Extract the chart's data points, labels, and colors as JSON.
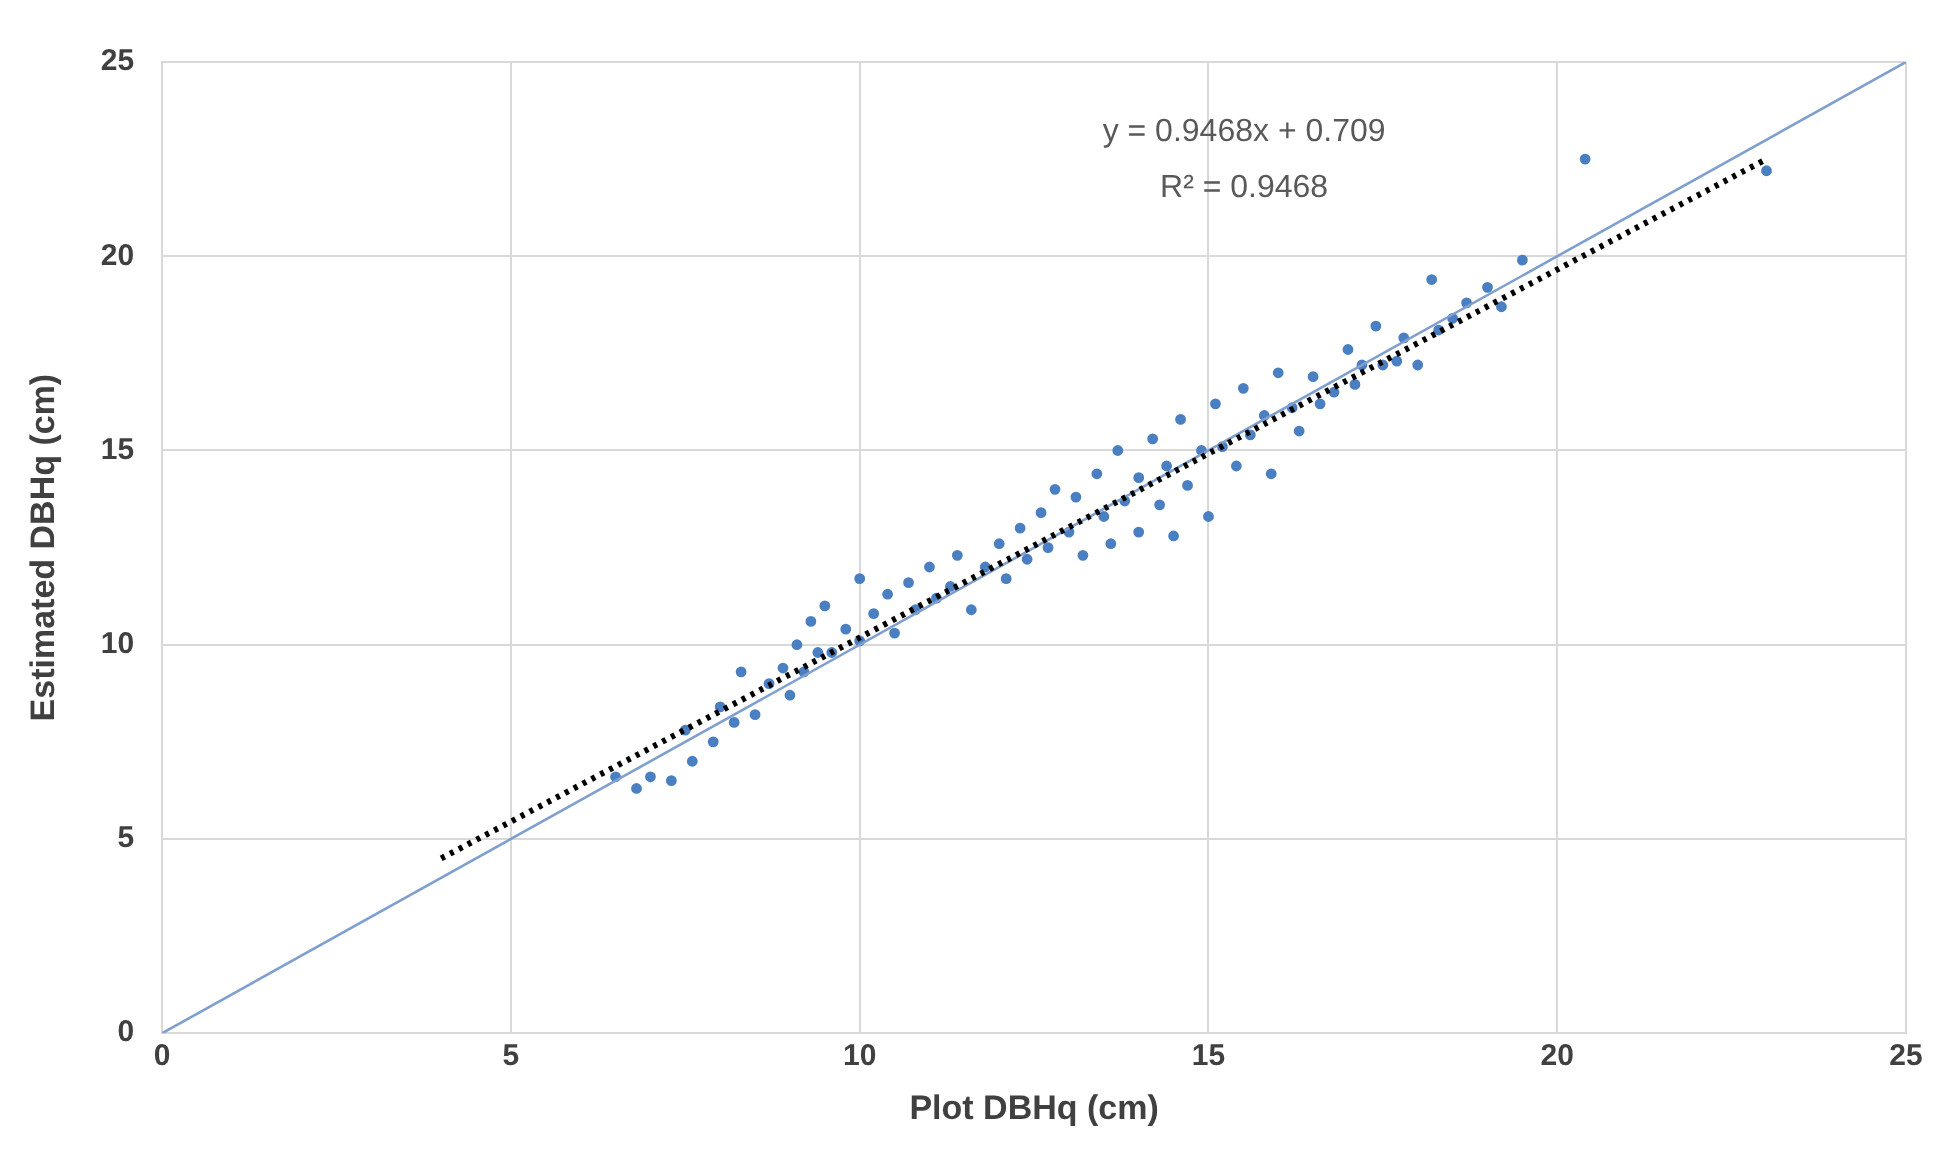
{
  "chart_data": {
    "type": "scatter",
    "xlabel": "Plot DBHq (cm)",
    "ylabel": "Estimated DBHq (cm)",
    "annotations": [
      "y = 0.9468x + 0.709",
      "R² = 0.9468"
    ],
    "xlim": [
      0,
      25
    ],
    "xticks": [
      0,
      5,
      10,
      15,
      20,
      25
    ],
    "ylim": [
      0,
      25
    ],
    "yticks": [
      0,
      5,
      10,
      15,
      20,
      25
    ],
    "grid": true,
    "legend": false,
    "marker": "circle",
    "series": [
      {
        "type": "scatter",
        "color": "#4a7fc1",
        "x": [
          6.5,
          6.8,
          7.0,
          7.3,
          7.5,
          7.6,
          7.9,
          8.0,
          8.2,
          8.3,
          8.5,
          8.7,
          8.9,
          9.0,
          9.1,
          9.2,
          9.3,
          9.4,
          9.5,
          9.6,
          9.8,
          10.0,
          10.0,
          10.2,
          10.4,
          10.5,
          10.7,
          10.8,
          11.0,
          11.1,
          11.3,
          11.4,
          11.6,
          11.8,
          12.0,
          12.1,
          12.3,
          12.4,
          12.6,
          12.7,
          12.8,
          13.0,
          13.1,
          13.2,
          13.4,
          13.5,
          13.6,
          13.7,
          13.8,
          14.0,
          14.0,
          14.2,
          14.3,
          14.4,
          14.5,
          14.6,
          14.7,
          14.9,
          15.0,
          15.1,
          15.2,
          15.4,
          15.5,
          15.6,
          15.8,
          15.9,
          16.0,
          16.2,
          16.3,
          16.5,
          16.6,
          16.8,
          17.0,
          17.1,
          17.2,
          17.4,
          17.5,
          17.7,
          17.8,
          18.0,
          18.2,
          18.3,
          18.5,
          18.7,
          19.0,
          19.2,
          19.5,
          20.4,
          23.0
        ],
        "values": [
          6.6,
          6.3,
          6.6,
          6.5,
          7.8,
          7.0,
          7.5,
          8.4,
          8.0,
          9.3,
          8.2,
          9.0,
          9.4,
          8.7,
          10.0,
          9.3,
          10.6,
          9.8,
          11.0,
          9.8,
          10.4,
          11.7,
          10.1,
          10.8,
          11.3,
          10.3,
          11.6,
          10.9,
          12.0,
          11.2,
          11.5,
          12.3,
          10.9,
          12.0,
          12.6,
          11.7,
          13.0,
          12.2,
          13.4,
          12.5,
          14.0,
          12.9,
          13.8,
          12.3,
          14.4,
          13.3,
          12.6,
          15.0,
          13.7,
          14.3,
          12.9,
          15.3,
          13.6,
          14.6,
          12.8,
          15.8,
          14.1,
          15.0,
          13.3,
          16.2,
          15.1,
          14.6,
          16.6,
          15.4,
          15.9,
          14.4,
          17.0,
          16.1,
          15.5,
          16.9,
          16.2,
          16.5,
          17.6,
          16.7,
          17.2,
          18.2,
          17.2,
          17.3,
          17.9,
          17.2,
          19.4,
          18.1,
          18.4,
          18.8,
          19.2,
          18.7,
          19.9,
          22.5,
          22.2
        ]
      },
      {
        "type": "line",
        "color": "#000000",
        "line_style": "dotted",
        "marker": "none",
        "x": [
          4,
          23
        ],
        "values": [
          4.5,
          22.5
        ]
      },
      {
        "type": "line",
        "color": "#7f9fcf",
        "line_style": "solid",
        "marker": "none",
        "x": [
          0,
          25
        ],
        "values": [
          0,
          25
        ]
      }
    ]
  }
}
